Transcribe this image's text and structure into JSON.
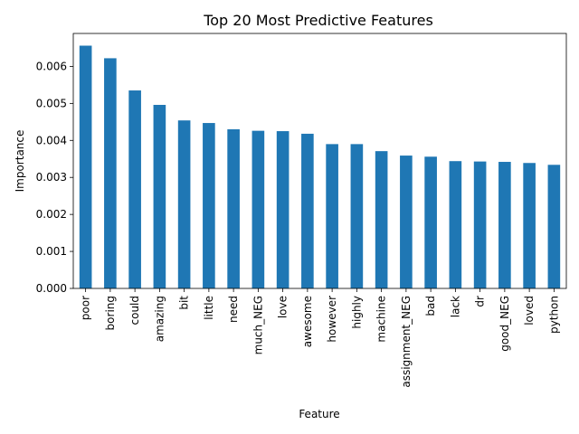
{
  "chart_data": {
    "type": "bar",
    "title": "Top 20 Most Predictive Features",
    "xlabel": "Feature",
    "ylabel": "Importance",
    "categories": [
      "poor",
      "boring",
      "could",
      "amazing",
      "bit",
      "little",
      "need",
      "much_NEG",
      "love",
      "awesome",
      "however",
      "highly",
      "machine",
      "assignment_NEG",
      "bad",
      "lack",
      "dr",
      "good_NEG",
      "loved",
      "python"
    ],
    "values": [
      0.00656,
      0.00622,
      0.00535,
      0.00496,
      0.00454,
      0.00447,
      0.0043,
      0.00426,
      0.00425,
      0.00418,
      0.0039,
      0.0039,
      0.00371,
      0.00359,
      0.00356,
      0.00344,
      0.00343,
      0.00342,
      0.00339,
      0.00334
    ],
    "yticks": [
      "0.000",
      "0.001",
      "0.002",
      "0.003",
      "0.004",
      "0.005",
      "0.006"
    ],
    "ylim": [
      0,
      0.00689
    ],
    "color": "#1f77b4",
    "grid": false,
    "legend": "none"
  }
}
